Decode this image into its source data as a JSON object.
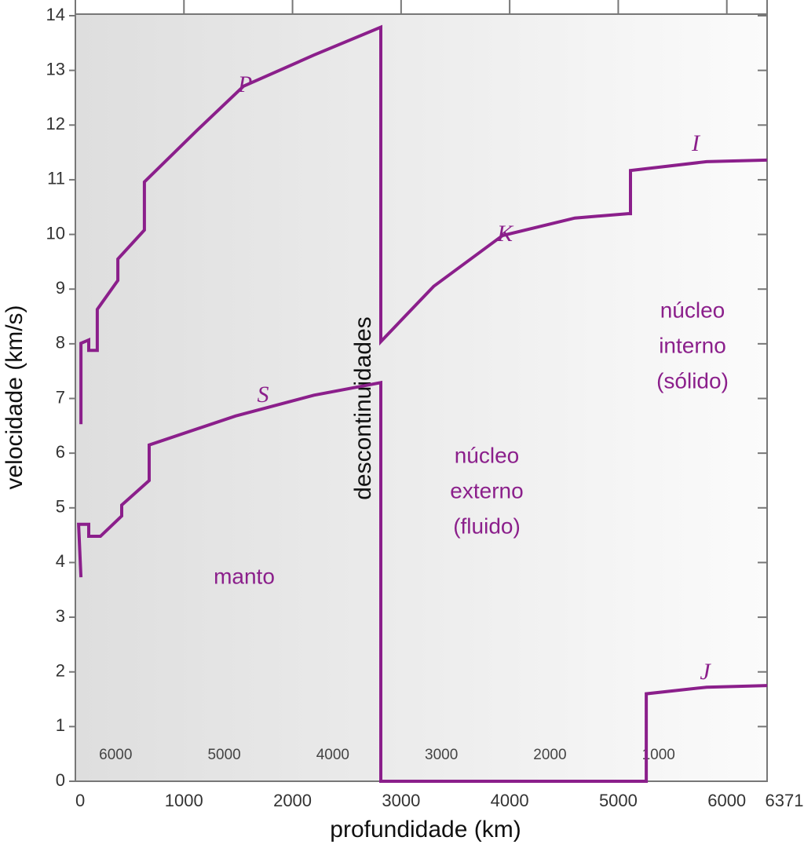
{
  "chart_data": {
    "type": "line",
    "xlabel": "profundidade (km)",
    "ylabel": "velocidade (km/s)",
    "xlim": [
      0,
      6371
    ],
    "xticks": [
      0,
      1000,
      2000,
      3000,
      4000,
      5000,
      6000,
      6371
    ],
    "x2lim": [
      6371,
      0
    ],
    "x2ticks": [
      6000,
      5000,
      4000,
      3000,
      2000,
      1000
    ],
    "ylim": [
      0,
      14
    ],
    "yticks": [
      0,
      1,
      2,
      3,
      4,
      5,
      6,
      7,
      8,
      9,
      10,
      11,
      12,
      13,
      14
    ],
    "color": "#8b1f8b",
    "series": [
      {
        "name": "P",
        "color": "#8b1f8b",
        "x": [
          51,
          51,
          123,
          123,
          202,
          202,
          391,
          391,
          636,
          636,
          1114,
          1548,
          2198,
          2813,
          2813,
          3300,
          3934,
          4600,
          5091,
          5113,
          5113,
          5814,
          6371
        ],
        "y": [
          6.53,
          8.01,
          8.07,
          7.88,
          7.88,
          8.63,
          9.16,
          9.55,
          10.08,
          10.96,
          11.89,
          12.71,
          13.28,
          13.79,
          8.04,
          9.05,
          9.98,
          10.3,
          10.38,
          10.38,
          11.17,
          11.33,
          11.36
        ]
      },
      {
        "name": "S",
        "color": "#8b1f8b",
        "x": [
          51,
          30,
          123,
          123,
          231,
          427,
          427,
          680,
          680,
          1475,
          2198,
          2813,
          2813,
          5258,
          5258,
          5814,
          6371
        ],
        "y": [
          3.73,
          4.7,
          4.7,
          4.48,
          4.48,
          4.85,
          5.05,
          5.5,
          6.15,
          6.68,
          7.06,
          7.29,
          0,
          0,
          1.6,
          1.72,
          1.75
        ]
      }
    ],
    "annotations": [
      "K",
      "I",
      "J"
    ],
    "discontinuity": "descontinuidades",
    "regions": [
      [
        "manto"
      ],
      [
        "núcleo",
        "externo",
        "(fluido)"
      ],
      [
        "núcleo",
        "interno",
        "(sólido)"
      ]
    ]
  }
}
